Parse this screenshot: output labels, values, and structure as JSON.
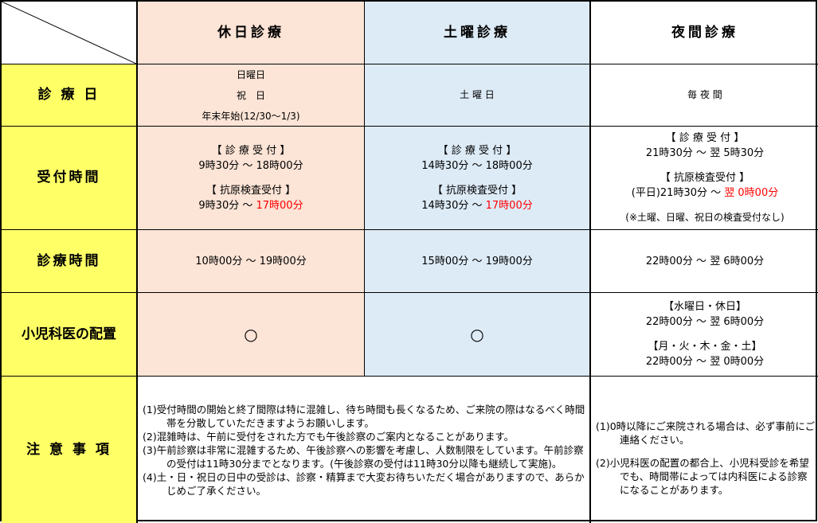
{
  "columns": [
    "休日診療",
    "土曜診療",
    "夜間診療"
  ],
  "rows": {
    "day": {
      "label": "診 療 日",
      "holiday": [
        "日曜日",
        "祝　日",
        "年末年始(12/30～1/3)"
      ],
      "saturday": "土 曜 日",
      "night": "毎 夜 間"
    },
    "reception": {
      "label": "受付時間",
      "holiday": {
        "reception_label": "【 診 療 受 付 】",
        "reception_time": "9時30分 ～ 18時00分",
        "antigen_label": "【 抗原検査受付 】",
        "antigen_start": "9時30分 ～ ",
        "antigen_end": "17時00分"
      },
      "saturday": {
        "reception_label": "【 診 療 受 付 】",
        "reception_time": "14時30分 ～ 18時00分",
        "antigen_label": "【 抗原検査受付 】",
        "antigen_start": "14時30分 ～ ",
        "antigen_end": "17時00分"
      },
      "night": {
        "reception_label": "【 診 療 受 付 】",
        "reception_time": "21時30分 ～ 翌 5時30分",
        "antigen_label": "【 抗原検査受付 】",
        "antigen_start": "(平日)21時30分 ～ ",
        "antigen_end": "翌 0時00分",
        "antigen_note": "(※土曜、日曜、祝日の検査受付なし)"
      }
    },
    "hours": {
      "label": "診療時間",
      "holiday": "10時00分 ～ 19時00分",
      "saturday": "15時00分 ～ 19時00分",
      "night": "22時00分 ～ 翌 6時00分"
    },
    "pediatrics": {
      "label": "小児科医の配置",
      "holiday": "○",
      "saturday": "○",
      "night": {
        "group1_label": "【水曜日・休日】",
        "group1_time": "22時00分 ～ 翌 6時00分",
        "group2_label": "【月・火・木・金・土】",
        "group2_time": "22時00分 ～ 翌 0時00分"
      }
    },
    "notes": {
      "label": "注 意 事 項",
      "day_notes": [
        "(1)受付時間の開始と終了間際は特に混雑し、待ち時間も長くなるため、ご来院の際はなるべく時間帯を分散していただきますようお願いします。",
        "(2)混雑時は、午前に受付をされた方でも午後診察のご案内となることがあります。",
        "(3)午前診察は非常に混雑するため、午後診察への影響を考慮し、人数制限をしています。午前診察の受付は11時30分までとなります。(午後診察の受付は11時30分以降も継続して実施)。",
        "(4)土・日・祝日の日中の受診は、診察・精算まで大変お待ちいただく場合がありますので、あらかじめご了承ください。"
      ],
      "night_notes": [
        "(1)0時以降にご来院される場合は、必ず事前にご連絡ください。",
        "(2)小児科医の配置の都合上、小児科受診を希望でも、時間帯によっては内科医による診察になることがあります。"
      ]
    }
  },
  "colors": {
    "holiday_bg": "#fce4d6",
    "saturday_bg": "#ddebf7",
    "label_bg": "#ffff66",
    "highlight": "#ff0000"
  }
}
